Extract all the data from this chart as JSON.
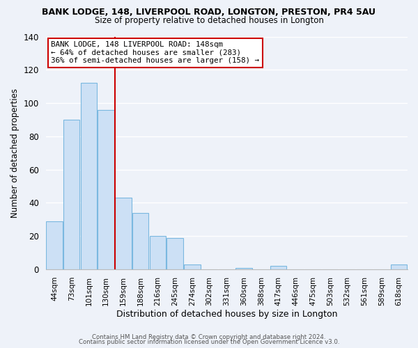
{
  "title": "BANK LODGE, 148, LIVERPOOL ROAD, LONGTON, PRESTON, PR4 5AU",
  "subtitle": "Size of property relative to detached houses in Longton",
  "xlabel": "Distribution of detached houses by size in Longton",
  "ylabel": "Number of detached properties",
  "bar_labels": [
    "44sqm",
    "73sqm",
    "101sqm",
    "130sqm",
    "159sqm",
    "188sqm",
    "216sqm",
    "245sqm",
    "274sqm",
    "302sqm",
    "331sqm",
    "360sqm",
    "388sqm",
    "417sqm",
    "446sqm",
    "475sqm",
    "503sqm",
    "532sqm",
    "561sqm",
    "589sqm",
    "618sqm"
  ],
  "bar_values": [
    29,
    90,
    112,
    96,
    43,
    34,
    20,
    19,
    3,
    0,
    0,
    1,
    0,
    2,
    0,
    0,
    0,
    0,
    0,
    0,
    3
  ],
  "bar_color": "#cce0f5",
  "bar_edgecolor": "#7ab8e0",
  "vline_color": "#cc0000",
  "ylim": [
    0,
    140
  ],
  "yticks": [
    0,
    20,
    40,
    60,
    80,
    100,
    120,
    140
  ],
  "annotation_title": "BANK LODGE, 148 LIVERPOOL ROAD: 148sqm",
  "annotation_line1": "← 64% of detached houses are smaller (283)",
  "annotation_line2": "36% of semi-detached houses are larger (158) →",
  "footer1": "Contains HM Land Registry data © Crown copyright and database right 2024.",
  "footer2": "Contains public sector information licensed under the Open Government Licence v3.0.",
  "background_color": "#eef2f9"
}
